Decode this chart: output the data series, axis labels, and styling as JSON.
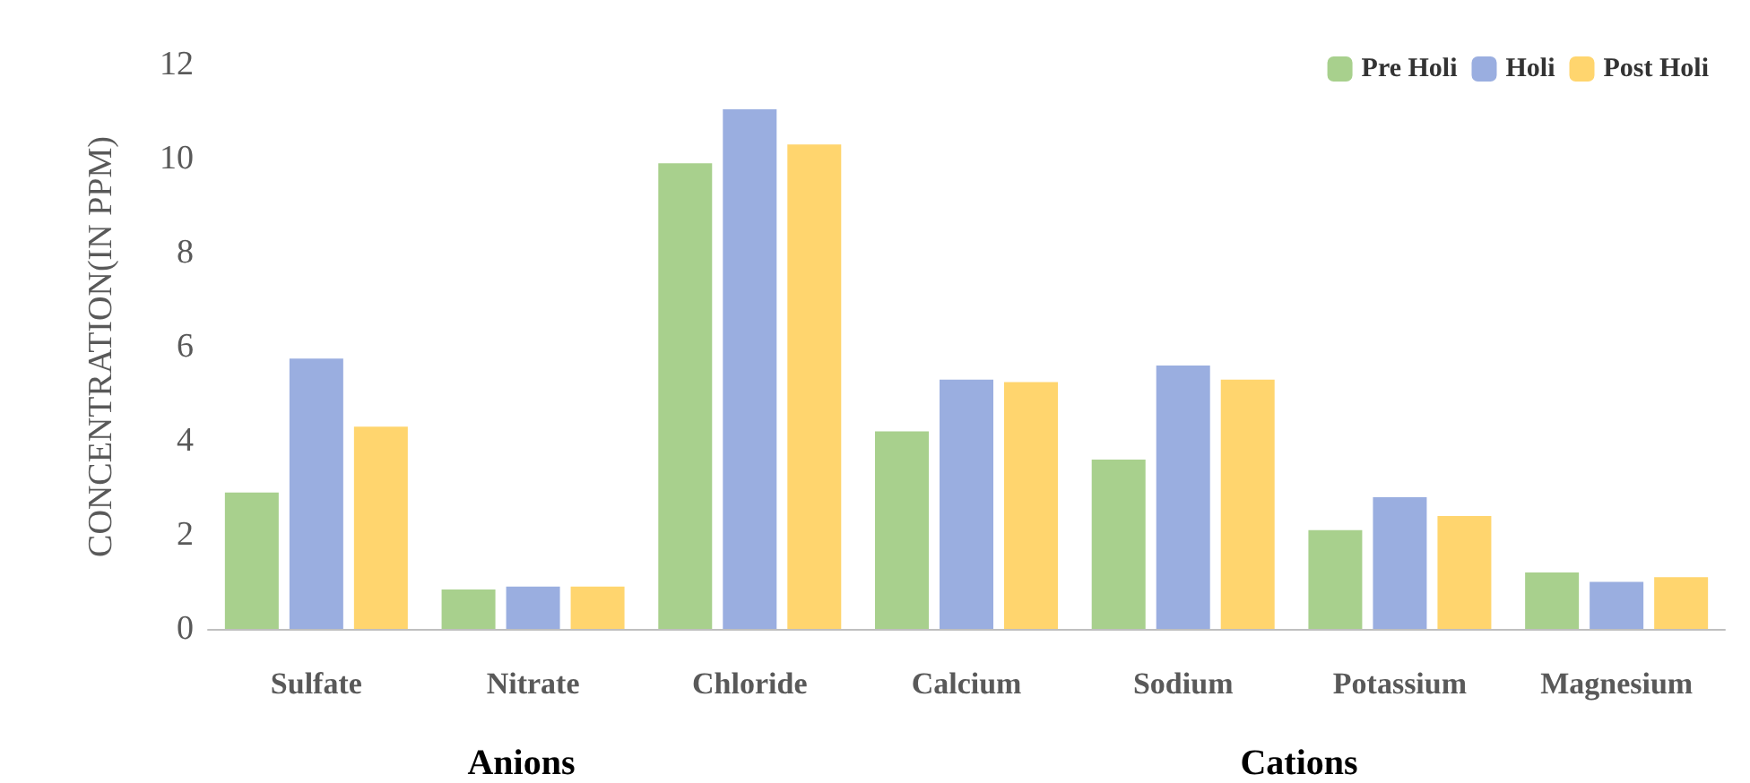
{
  "chart_data": {
    "type": "bar",
    "ylabel": "CONCENTRATION(IN PPM)",
    "categories": [
      "Sulfate",
      "Nitrate",
      "Chloride",
      "Calcium",
      "Sodium",
      "Potassium",
      "Magnesium"
    ],
    "series": [
      {
        "name": "Pre Holi",
        "color": "#a8d08d",
        "values": [
          2.9,
          0.84,
          9.9,
          4.2,
          3.6,
          2.1,
          1.2
        ]
      },
      {
        "name": "Holi",
        "color": "#9aaee0",
        "values": [
          5.75,
          0.9,
          11.05,
          5.3,
          5.6,
          2.8,
          1.0
        ]
      },
      {
        "name": "Post Holi",
        "color": "#ffd56e",
        "values": [
          4.3,
          0.9,
          10.3,
          5.25,
          5.3,
          2.4,
          1.1
        ]
      }
    ],
    "ylim": [
      0,
      12
    ],
    "yticks": [
      0,
      2,
      4,
      6,
      8,
      10,
      12
    ],
    "grid": false,
    "legend": "top right",
    "annotations": [
      "Anions",
      "Cations"
    ]
  }
}
